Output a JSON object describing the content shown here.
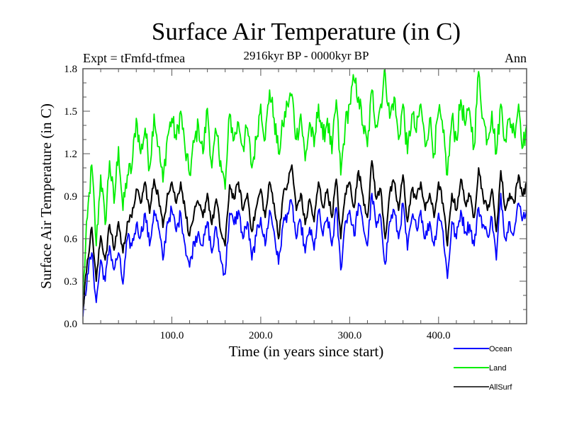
{
  "chart_data": {
    "type": "line",
    "title": "Surface Air Temperature (in C)",
    "subtitle": "2916kyr BP - 0000kyr BP",
    "top_left_note": "Expt = tFmfd-tfmea",
    "top_right_note": "Ann",
    "xlabel": "Time (in years since start)",
    "ylabel": "Surface Air Temperature (in C)",
    "xlim": [
      0,
      499
    ],
    "ylim": [
      0.0,
      1.8
    ],
    "xticks": [
      100,
      200,
      300,
      400
    ],
    "xtick_labels": [
      "100.0",
      "200.0",
      "300.0",
      "400.0"
    ],
    "x_minor_step": 20,
    "yticks": [
      0.0,
      0.3,
      0.6,
      0.9,
      1.2,
      1.5,
      1.8
    ],
    "ytick_labels": [
      "0.0",
      "0.3",
      "0.6",
      "0.9",
      "1.2",
      "1.5",
      "1.8"
    ],
    "y_minor_step": 0.1,
    "grid": false,
    "legend_position": "bottom-right, below plot",
    "x": [
      0,
      5,
      10,
      15,
      20,
      25,
      30,
      35,
      40,
      45,
      50,
      55,
      60,
      65,
      70,
      75,
      80,
      85,
      90,
      95,
      100,
      105,
      110,
      115,
      120,
      125,
      130,
      135,
      140,
      145,
      150,
      155,
      160,
      165,
      170,
      175,
      180,
      185,
      190,
      195,
      200,
      205,
      210,
      215,
      220,
      225,
      230,
      235,
      240,
      245,
      250,
      255,
      260,
      265,
      270,
      275,
      280,
      285,
      290,
      295,
      300,
      305,
      310,
      315,
      320,
      325,
      330,
      335,
      340,
      345,
      350,
      355,
      360,
      365,
      370,
      375,
      380,
      385,
      390,
      395,
      400,
      405,
      410,
      415,
      420,
      425,
      430,
      435,
      440,
      445,
      450,
      455,
      460,
      465,
      470,
      475,
      480,
      485,
      490,
      495,
      499
    ],
    "series": [
      {
        "name": "Ocean",
        "color": "#0000ff",
        "values": [
          0.05,
          0.35,
          0.5,
          0.15,
          0.45,
          0.3,
          0.55,
          0.38,
          0.5,
          0.28,
          0.6,
          0.55,
          0.7,
          0.62,
          0.78,
          0.55,
          0.8,
          0.68,
          0.45,
          0.72,
          0.8,
          0.65,
          0.78,
          0.55,
          0.4,
          0.58,
          0.65,
          0.55,
          0.72,
          0.5,
          0.68,
          0.45,
          0.35,
          0.78,
          0.7,
          0.8,
          0.6,
          0.72,
          0.45,
          0.62,
          0.75,
          0.55,
          0.8,
          0.65,
          0.42,
          0.7,
          0.78,
          0.85,
          0.6,
          0.72,
          0.5,
          0.68,
          0.52,
          0.8,
          0.62,
          0.75,
          0.55,
          0.82,
          0.38,
          0.72,
          0.8,
          0.62,
          0.85,
          0.7,
          0.55,
          0.92,
          0.68,
          0.75,
          0.42,
          0.72,
          0.8,
          0.6,
          0.85,
          0.52,
          0.75,
          0.68,
          0.8,
          0.6,
          0.72,
          0.55,
          0.78,
          0.65,
          0.32,
          0.72,
          0.6,
          0.8,
          0.65,
          0.7,
          0.55,
          0.82,
          0.7,
          0.62,
          0.75,
          0.45,
          0.92,
          0.6,
          0.72,
          0.65,
          0.85,
          0.75,
          0.8
        ]
      },
      {
        "name": "Land",
        "color": "#00ee00",
        "values": [
          0.2,
          0.75,
          1.12,
          0.55,
          1.05,
          0.7,
          1.15,
          0.85,
          1.25,
          0.8,
          1.05,
          1.1,
          1.45,
          1.2,
          1.38,
          1.1,
          1.48,
          1.25,
          1.0,
          1.32,
          1.45,
          1.3,
          1.5,
          1.22,
          1.05,
          1.28,
          1.4,
          1.2,
          1.52,
          1.1,
          1.35,
          1.15,
          0.95,
          1.48,
          1.3,
          1.42,
          1.25,
          1.38,
          1.1,
          1.3,
          1.55,
          1.3,
          1.65,
          1.45,
          1.2,
          1.4,
          1.55,
          1.62,
          1.3,
          1.48,
          1.15,
          1.42,
          1.25,
          1.55,
          1.3,
          1.45,
          1.2,
          1.58,
          1.05,
          1.4,
          1.55,
          1.72,
          1.6,
          1.4,
          1.25,
          1.65,
          1.4,
          1.55,
          1.77,
          1.45,
          1.6,
          1.3,
          1.55,
          1.2,
          1.48,
          1.35,
          1.55,
          1.25,
          1.45,
          1.2,
          1.5,
          1.35,
          1.05,
          1.45,
          1.3,
          1.58,
          1.4,
          1.5,
          1.25,
          1.78,
          1.45,
          1.3,
          1.5,
          1.2,
          1.55,
          1.3,
          1.45,
          1.35,
          1.55,
          1.25,
          1.4
        ]
      },
      {
        "name": "AllSurf",
        "color": "#000000",
        "values": [
          0.1,
          0.45,
          0.68,
          0.3,
          0.62,
          0.45,
          0.7,
          0.52,
          0.72,
          0.5,
          0.72,
          0.75,
          0.95,
          0.85,
          1.0,
          0.78,
          1.02,
          0.9,
          0.68,
          0.92,
          1.0,
          0.85,
          1.0,
          0.8,
          0.62,
          0.78,
          0.85,
          0.75,
          0.92,
          0.7,
          0.88,
          0.65,
          0.55,
          0.98,
          0.88,
          1.0,
          0.8,
          0.92,
          0.65,
          0.82,
          0.95,
          0.75,
          1.0,
          0.85,
          0.6,
          0.9,
          0.98,
          1.12,
          0.8,
          0.92,
          0.7,
          0.88,
          0.72,
          1.0,
          0.82,
          0.95,
          0.75,
          1.02,
          0.6,
          0.92,
          1.0,
          0.82,
          1.08,
          0.9,
          0.75,
          1.15,
          0.88,
          0.95,
          0.6,
          0.92,
          1.0,
          0.8,
          1.05,
          0.72,
          0.95,
          0.88,
          1.0,
          0.8,
          0.92,
          0.75,
          1.0,
          0.85,
          0.55,
          0.92,
          0.8,
          1.02,
          0.85,
          0.9,
          0.75,
          1.1,
          0.9,
          0.8,
          0.95,
          0.65,
          1.08,
          0.8,
          0.92,
          0.85,
          1.05,
          0.9,
          1.0
        ]
      }
    ]
  }
}
